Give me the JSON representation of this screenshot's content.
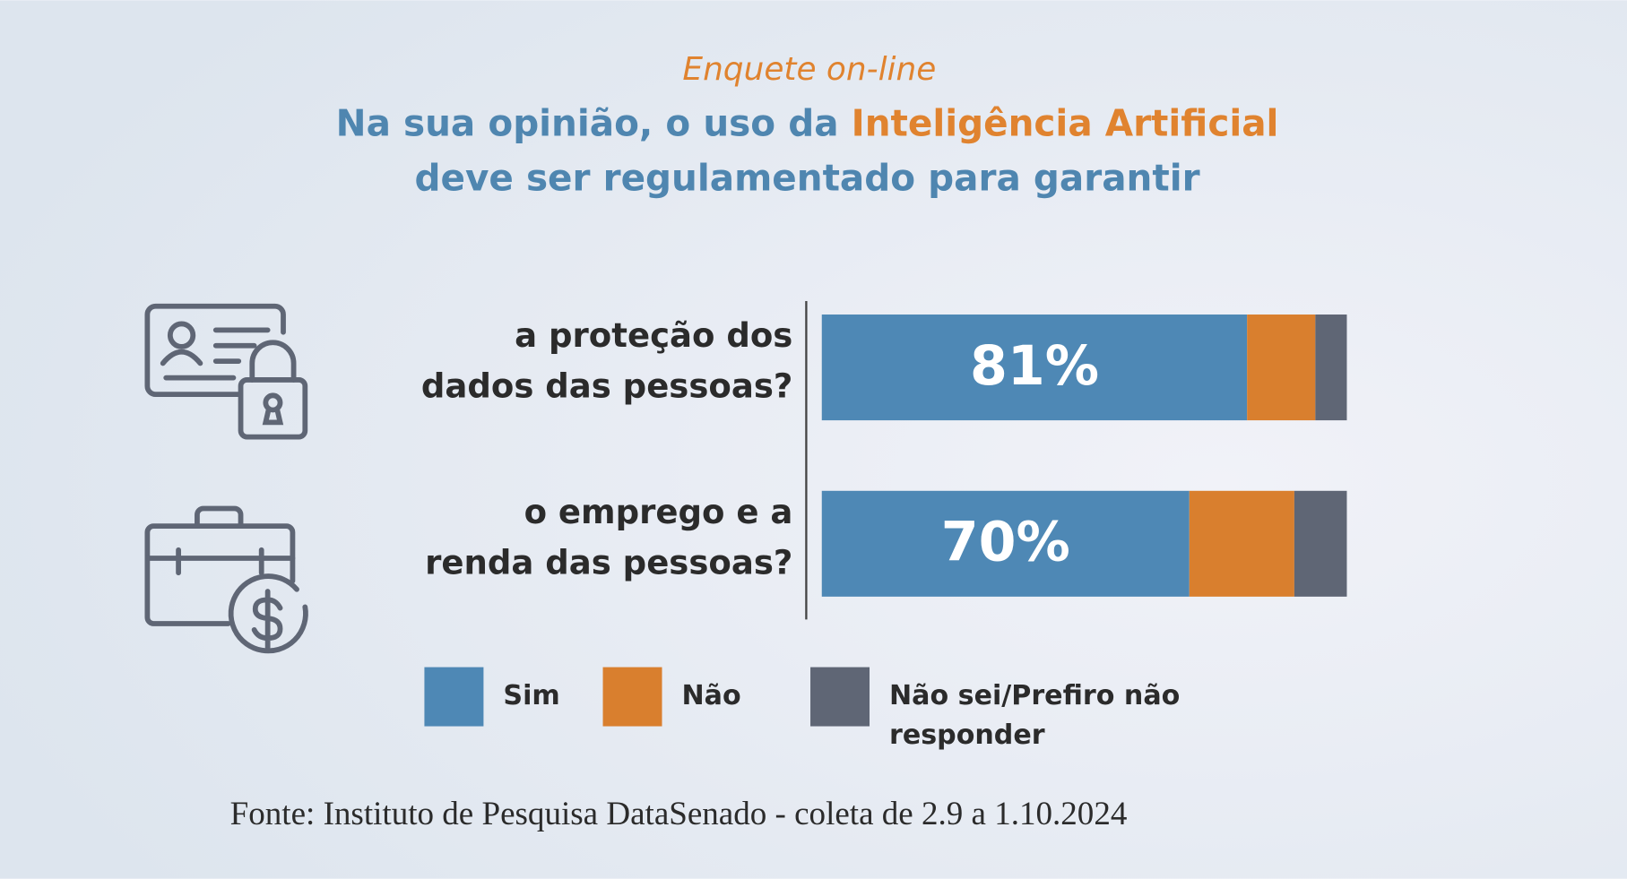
{
  "chart_data": {
    "type": "stacked-bar-horizontal",
    "supertitle": "Enquete on-line",
    "title_parts": [
      "Na sua opinião, o uso da",
      "Inteligência Artificial",
      "deve ser regulamentado para garantir"
    ],
    "categories": [
      [
        "a proteção dos",
        "dados das pessoas?"
      ],
      [
        "o emprego e a",
        "renda das pessoas?"
      ]
    ],
    "series": [
      {
        "name": "Sim",
        "color": "#4e88b5",
        "values": [
          81,
          70
        ],
        "value_labels": [
          "81%",
          "70%"
        ]
      },
      {
        "name": "Não",
        "color": "#d97f2e",
        "values": [
          13,
          20
        ]
      },
      {
        "name": "Não sei/Prefiro não responder",
        "color": "#5f6675",
        "values": [
          6,
          10
        ]
      }
    ],
    "xlim": [
      0,
      100
    ],
    "source": "Fonte: Instituto de Pesquisa DataSenado - coleta de 2.9 a 1.10.2024"
  }
}
